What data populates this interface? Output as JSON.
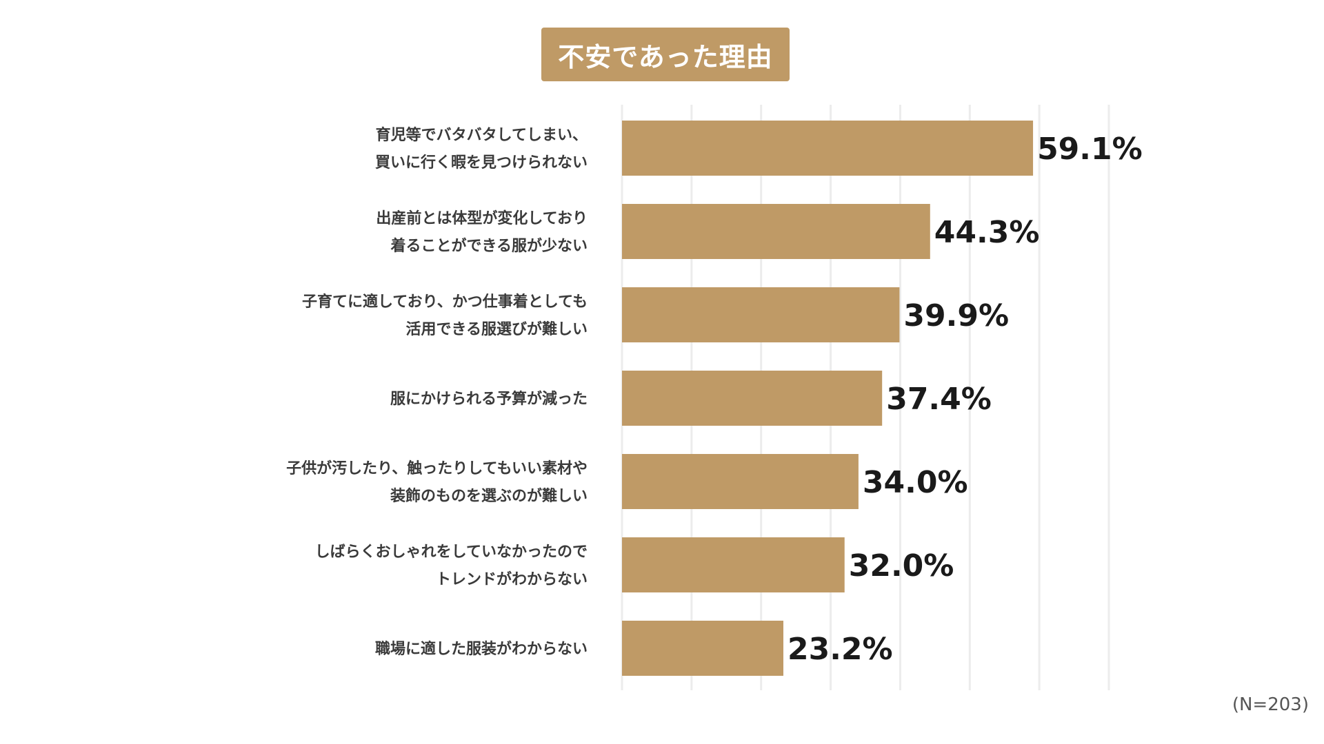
{
  "chart_data": {
    "type": "bar",
    "orientation": "horizontal",
    "title": "不安であった理由",
    "categories": [
      [
        "育児等でバタバタしてしまい、",
        "買いに行く暇を見つけられない"
      ],
      [
        "出産前とは体型が変化しており",
        "着ることができる服が少ない"
      ],
      [
        "子育てに適しており、かつ仕事着としても",
        "活用できる服選びが難しい"
      ],
      [
        "服にかけられる予算が減った"
      ],
      [
        "子供が汚したり、触ったりしてもいい素材や",
        "装飾のものを選ぶのが難しい"
      ],
      [
        "しばらくおしゃれをしていなかったので",
        "トレンドがわからない"
      ],
      [
        "職場に適した服装がわからない"
      ]
    ],
    "values": [
      59.1,
      44.3,
      39.9,
      37.4,
      34.0,
      32.0,
      23.2
    ],
    "value_labels": [
      "59.1%",
      "44.3%",
      "39.9%",
      "37.4%",
      "34.0%",
      "32.0%",
      "23.2%"
    ],
    "xlim": [
      0,
      70
    ],
    "grid": true,
    "bar_color": "#bf9a66",
    "grid_color": "#ececec",
    "note": "(N=203)"
  }
}
